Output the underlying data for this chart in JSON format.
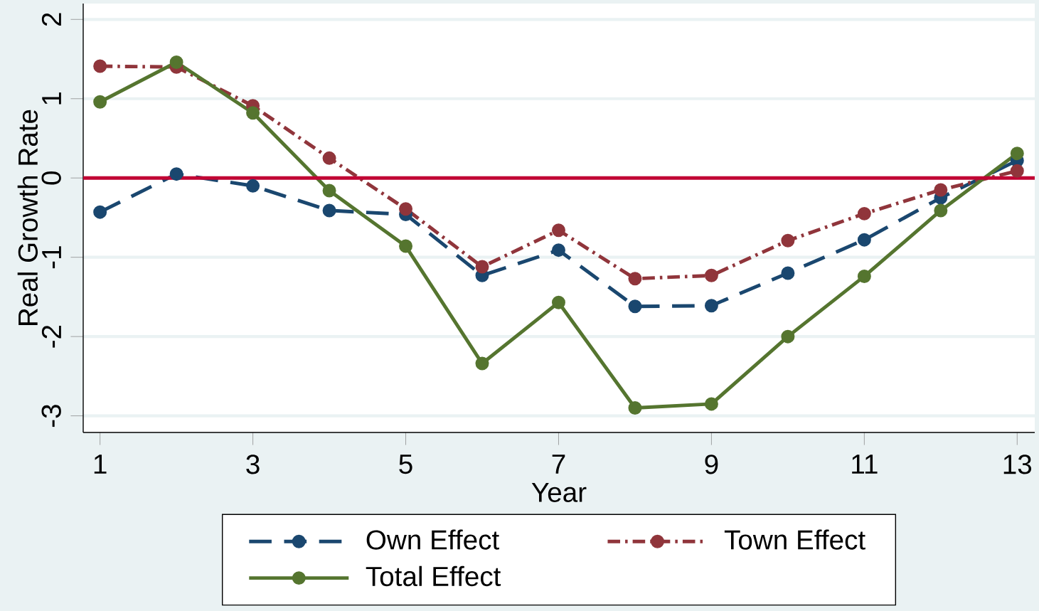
{
  "chart_data": {
    "type": "line",
    "xlabel": "Year",
    "ylabel": "Real Growth Rate",
    "x": [
      1,
      2,
      3,
      4,
      5,
      6,
      7,
      8,
      9,
      10,
      11,
      12,
      13
    ],
    "series": [
      {
        "name": "Own Effect",
        "color": "#1a476f",
        "line_style": "dashed",
        "values": [
          -0.43,
          0.05,
          -0.1,
          -0.41,
          -0.46,
          -1.23,
          -0.91,
          -1.62,
          -1.61,
          -1.2,
          -0.78,
          -0.25,
          0.22
        ]
      },
      {
        "name": "Town Effect",
        "color": "#90353b",
        "line_style": "dotted",
        "values": [
          1.41,
          1.4,
          0.91,
          0.25,
          -0.39,
          -1.12,
          -0.66,
          -1.27,
          -1.23,
          -0.79,
          -0.45,
          -0.15,
          0.09
        ]
      },
      {
        "name": "Total Effect",
        "color": "#55752f",
        "line_style": "solid",
        "values": [
          0.96,
          1.46,
          0.82,
          -0.16,
          -0.86,
          -2.34,
          -1.57,
          -2.9,
          -2.85,
          -2.0,
          -1.24,
          -0.41,
          0.31
        ]
      }
    ],
    "xlim": [
      0.78,
      13.23
    ],
    "ylim": [
      -3.21,
      2.2
    ],
    "xticks": [
      1,
      3,
      5,
      7,
      9,
      11,
      13
    ],
    "yticks": [
      -3,
      -2,
      -1,
      0,
      1,
      2
    ],
    "ref_lines": [
      {
        "axis": "y",
        "value": 0,
        "color": "#c10534"
      }
    ],
    "grid": "y",
    "legend": "bottom",
    "marker": "circle"
  }
}
